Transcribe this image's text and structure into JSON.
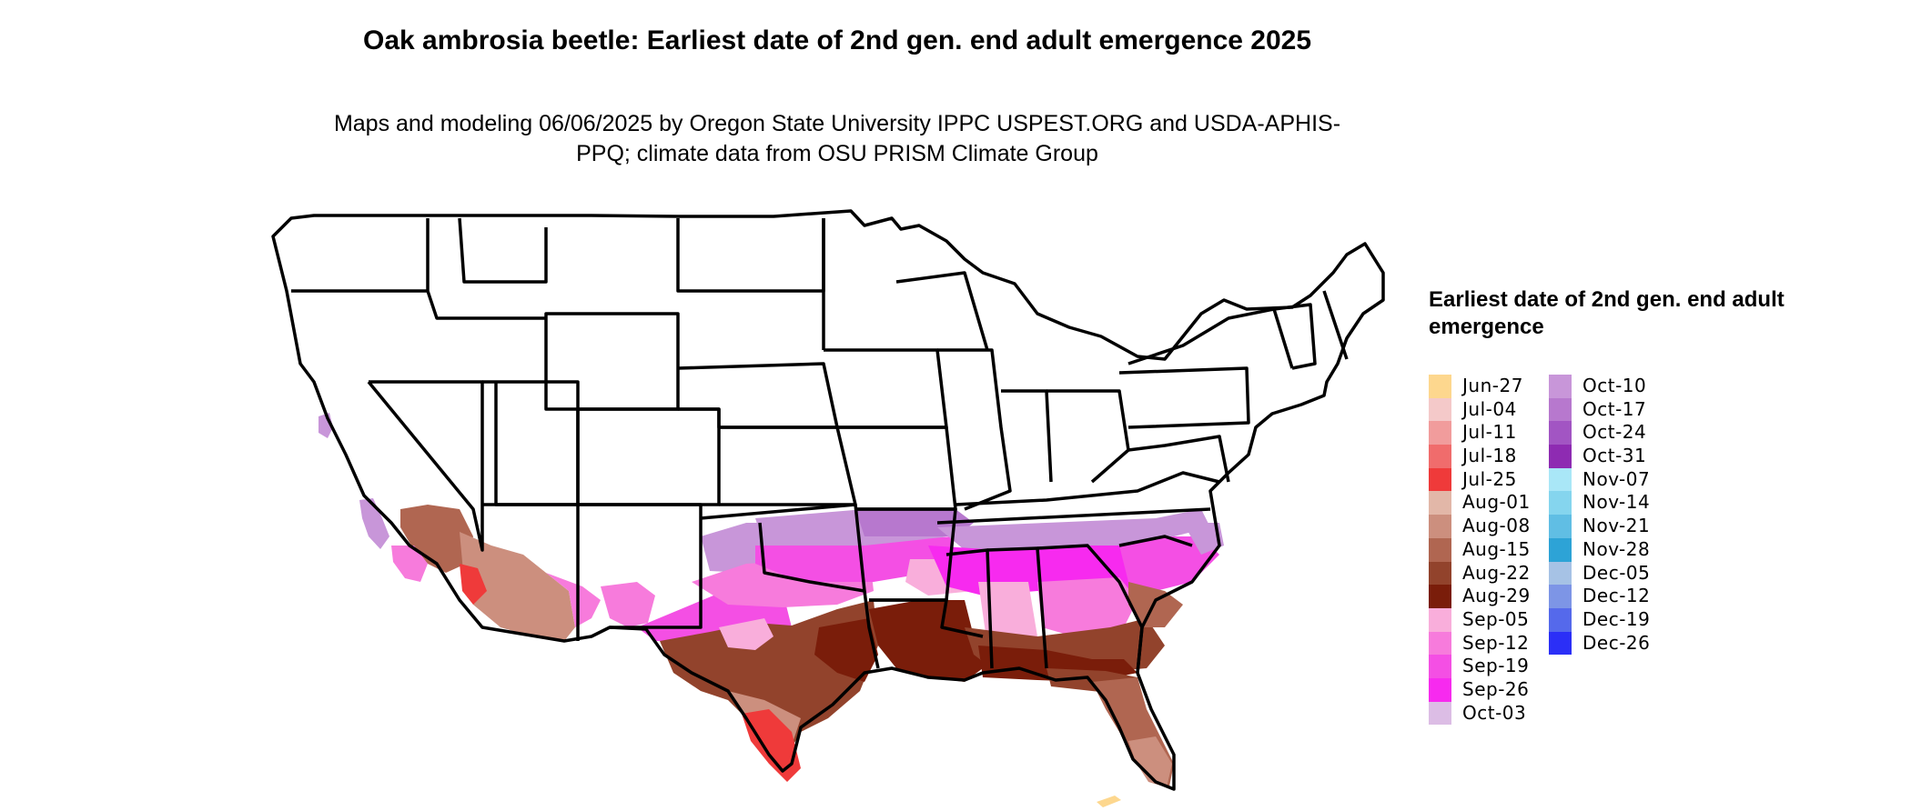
{
  "title": "Oak ambrosia beetle: Earliest date of 2nd gen. end adult emergence 2025",
  "subtitle": "Maps and modeling 06/06/2025 by Oregon State University IPPC USPEST.ORG and USDA-APHIS-PPQ; climate data from OSU PRISM Climate Group",
  "legend": {
    "title": "Earliest date of 2nd gen. end adult emergence",
    "columns": [
      [
        {
          "label": "Jun-27",
          "color": "#FDD78E"
        },
        {
          "label": "Jul-04",
          "color": "#F4C9C9"
        },
        {
          "label": "Jul-11",
          "color": "#F19C9C"
        },
        {
          "label": "Jul-18",
          "color": "#F06C6C"
        },
        {
          "label": "Jul-25",
          "color": "#EF3A3A"
        },
        {
          "label": "Aug-01",
          "color": "#E2B7A8"
        },
        {
          "label": "Aug-08",
          "color": "#CC8F7E"
        },
        {
          "label": "Aug-15",
          "color": "#B06651"
        },
        {
          "label": "Aug-22",
          "color": "#92432C"
        },
        {
          "label": "Aug-29",
          "color": "#7A1D0A"
        },
        {
          "label": "Sep-05",
          "color": "#F9AEDB"
        },
        {
          "label": "Sep-12",
          "color": "#F77BDC"
        },
        {
          "label": "Sep-19",
          "color": "#F44FE4"
        },
        {
          "label": "Sep-26",
          "color": "#F72AEF"
        },
        {
          "label": "Oct-03",
          "color": "#DCBDE5"
        }
      ],
      [
        {
          "label": "Oct-10",
          "color": "#C896D9"
        },
        {
          "label": "Oct-17",
          "color": "#B778CE"
        },
        {
          "label": "Oct-24",
          "color": "#A255C3"
        },
        {
          "label": "Oct-31",
          "color": "#8E2BB2"
        },
        {
          "label": "Nov-07",
          "color": "#A9E7F7"
        },
        {
          "label": "Nov-14",
          "color": "#85D5EE"
        },
        {
          "label": "Nov-21",
          "color": "#60BEE4"
        },
        {
          "label": "Nov-28",
          "color": "#2DA3D6"
        },
        {
          "label": "Dec-05",
          "color": "#A6C2E5"
        },
        {
          "label": "Dec-12",
          "color": "#7D95E6"
        },
        {
          "label": "Dec-19",
          "color": "#5569EB"
        },
        {
          "label": "Dec-26",
          "color": "#2B2FF7"
        }
      ]
    ]
  }
}
